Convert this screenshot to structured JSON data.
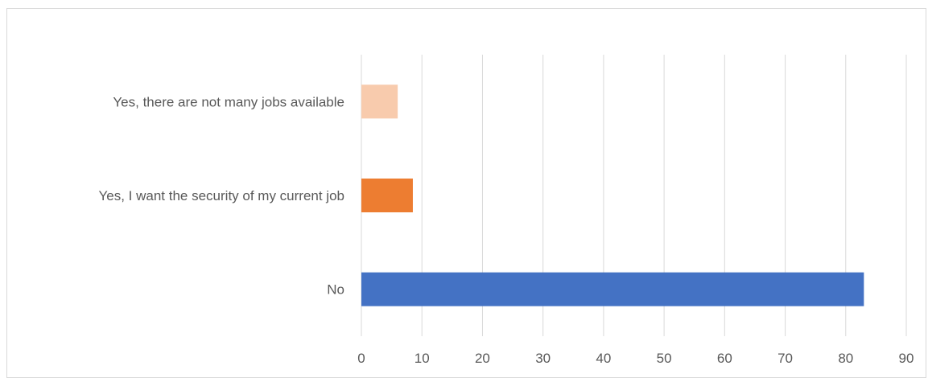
{
  "chart_data": {
    "type": "bar",
    "orientation": "horizontal",
    "categories": [
      "Yes, there are not many jobs available",
      "Yes, I want the security of my current job",
      "No"
    ],
    "values": [
      6,
      8.5,
      83
    ],
    "colors": [
      "#F8CBAD",
      "#ED7D31",
      "#4472C4"
    ],
    "xlim": [
      0,
      90
    ],
    "x_ticks": [
      0,
      10,
      20,
      30,
      40,
      50,
      60,
      70,
      80,
      90
    ],
    "grid": "vertical",
    "legend": "none",
    "title": "",
    "xlabel": "",
    "ylabel": ""
  }
}
